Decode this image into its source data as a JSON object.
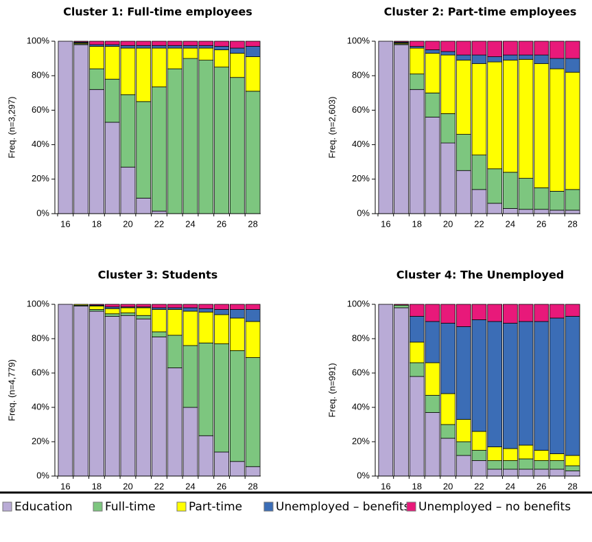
{
  "chart_data": [
    {
      "type": "bar",
      "stacked": true,
      "title": "Cluster 1: Full-time employees",
      "ylabel": "Freq. (n=3,297)",
      "categories": [
        16,
        null,
        18,
        null,
        20,
        null,
        22,
        null,
        24,
        null,
        26,
        null,
        28
      ],
      "ylim": [
        0,
        100
      ],
      "yticks": [
        {
          "value": 0,
          "label": "0%"
        },
        {
          "value": 20,
          "label": "20%"
        },
        {
          "value": 40,
          "label": "40%"
        },
        {
          "value": 60,
          "label": "60%"
        },
        {
          "value": 80,
          "label": "80%"
        },
        {
          "value": 100,
          "label": "100%"
        }
      ],
      "series": [
        {
          "name": "Education",
          "color": "#b9abd6",
          "values": [
            100,
            98,
            72,
            53,
            27,
            9,
            1.5,
            0,
            0,
            0,
            0,
            0,
            0
          ]
        },
        {
          "name": "Full-time",
          "color": "#7dc67f",
          "values": [
            0,
            0.5,
            12,
            25,
            42,
            56,
            72,
            84,
            90,
            89,
            85,
            79,
            71
          ]
        },
        {
          "name": "Part-time",
          "color": "#ffff00",
          "values": [
            0,
            0.5,
            13,
            19,
            27,
            31,
            22.5,
            12,
            6,
            7,
            10,
            14,
            20
          ]
        },
        {
          "name": "Unemployed – benefits",
          "color": "#3b6db6",
          "values": [
            0,
            0.5,
            1,
            1,
            1.5,
            1.5,
            1.5,
            1.5,
            1.5,
            1.5,
            2,
            3,
            6
          ]
        },
        {
          "name": "Unemployed – no benefits",
          "color": "#e8197a",
          "values": [
            0,
            0.5,
            2,
            2,
            2.5,
            2.5,
            2.5,
            2.5,
            2.5,
            2.5,
            3,
            4,
            3
          ]
        }
      ]
    },
    {
      "type": "bar",
      "stacked": true,
      "title": "Cluster 2: Part-time employees",
      "ylabel": "Freq. (n=2,603)",
      "categories": [
        16,
        null,
        18,
        null,
        20,
        null,
        22,
        null,
        24,
        null,
        26,
        null,
        28
      ],
      "ylim": [
        0,
        100
      ],
      "yticks": [
        {
          "value": 0,
          "label": "0%"
        },
        {
          "value": 20,
          "label": "20%"
        },
        {
          "value": 40,
          "label": "40%"
        },
        {
          "value": 60,
          "label": "60%"
        },
        {
          "value": 80,
          "label": "80%"
        },
        {
          "value": 100,
          "label": "100%"
        }
      ],
      "series": [
        {
          "name": "Education",
          "color": "#b9abd6",
          "values": [
            100,
            98,
            72,
            56,
            41,
            25,
            14,
            6,
            3,
            2.5,
            2.5,
            2,
            2
          ]
        },
        {
          "name": "Full-time",
          "color": "#7dc67f",
          "values": [
            0,
            0.5,
            9,
            14,
            17,
            21,
            20,
            20,
            21,
            18,
            12.5,
            11,
            12
          ]
        },
        {
          "name": "Part-time",
          "color": "#ffff00",
          "values": [
            0,
            0.5,
            15,
            23,
            34,
            43,
            53,
            62,
            65,
            69,
            72,
            71,
            68
          ]
        },
        {
          "name": "Unemployed – benefits",
          "color": "#3b6db6",
          "values": [
            0,
            0.5,
            1,
            2,
            2,
            3,
            5,
            3,
            3,
            2.5,
            5,
            6,
            8
          ]
        },
        {
          "name": "Unemployed – no benefits",
          "color": "#e8197a",
          "values": [
            0,
            0.5,
            3,
            5,
            6,
            8,
            8,
            9,
            8,
            8,
            8,
            10,
            10
          ]
        }
      ]
    },
    {
      "type": "bar",
      "stacked": true,
      "title": "Cluster 3: Students",
      "ylabel": "Freq. (n=4,779)",
      "categories": [
        16,
        null,
        18,
        null,
        20,
        null,
        22,
        null,
        24,
        null,
        26,
        null,
        28
      ],
      "ylim": [
        0,
        100
      ],
      "yticks": [
        {
          "value": 0,
          "label": "0%"
        },
        {
          "value": 20,
          "label": "20%"
        },
        {
          "value": 40,
          "label": "40%"
        },
        {
          "value": 60,
          "label": "60%"
        },
        {
          "value": 80,
          "label": "80%"
        },
        {
          "value": 100,
          "label": "100%"
        }
      ],
      "series": [
        {
          "name": "Education",
          "color": "#b9abd6",
          "values": [
            100,
            99,
            96,
            93,
            93.5,
            91.5,
            81,
            63,
            40,
            23.5,
            14,
            8.5,
            5.5
          ]
        },
        {
          "name": "Full-time",
          "color": "#7dc67f",
          "values": [
            0,
            0.5,
            1,
            1.5,
            1.5,
            2,
            3,
            19,
            36,
            54,
            63,
            64.5,
            63.5
          ]
        },
        {
          "name": "Part-time",
          "color": "#ffff00",
          "values": [
            0,
            0.5,
            2,
            3,
            3,
            4.5,
            13,
            15,
            20,
            18,
            17,
            19,
            21
          ]
        },
        {
          "name": "Unemployed – benefits",
          "color": "#3b6db6",
          "values": [
            0,
            0,
            0.5,
            1,
            0.5,
            0.5,
            1,
            1,
            2,
            2,
            3,
            5,
            7
          ]
        },
        {
          "name": "Unemployed – no benefits",
          "color": "#e8197a",
          "values": [
            0,
            0,
            0.5,
            1.5,
            1.5,
            1.5,
            2,
            2,
            2,
            2.5,
            3,
            3,
            3
          ]
        }
      ]
    },
    {
      "type": "bar",
      "stacked": true,
      "title": "Cluster 4: The Unemployed",
      "ylabel": "Freq. (n=991)",
      "categories": [
        16,
        null,
        18,
        null,
        20,
        null,
        22,
        null,
        24,
        null,
        26,
        null,
        28
      ],
      "ylim": [
        0,
        100
      ],
      "yticks": [
        {
          "value": 0,
          "label": "0%"
        },
        {
          "value": 20,
          "label": "20%"
        },
        {
          "value": 40,
          "label": "40%"
        },
        {
          "value": 60,
          "label": "60%"
        },
        {
          "value": 80,
          "label": "80%"
        },
        {
          "value": 100,
          "label": "100%"
        }
      ],
      "series": [
        {
          "name": "Education",
          "color": "#b9abd6",
          "values": [
            100,
            98,
            58,
            37,
            22,
            12,
            9,
            4,
            4,
            4,
            4,
            4,
            3
          ]
        },
        {
          "name": "Full-time",
          "color": "#7dc67f",
          "values": [
            0,
            1.5,
            8,
            10,
            8,
            8,
            6,
            5,
            5,
            6,
            5,
            5,
            3
          ]
        },
        {
          "name": "Part-time",
          "color": "#ffff00",
          "values": [
            0,
            0,
            12,
            19,
            18,
            13,
            11,
            8,
            7,
            8,
            6,
            4,
            6
          ]
        },
        {
          "name": "Unemployed – benefits",
          "color": "#3b6db6",
          "values": [
            0,
            0,
            15,
            24,
            41,
            54,
            65,
            73,
            73,
            72,
            75,
            79,
            81
          ]
        },
        {
          "name": "Unemployed – no benefits",
          "color": "#e8197a",
          "values": [
            0,
            0.5,
            7,
            10,
            11,
            13,
            9,
            10,
            11,
            10,
            10,
            8,
            7
          ]
        }
      ]
    }
  ]
}
